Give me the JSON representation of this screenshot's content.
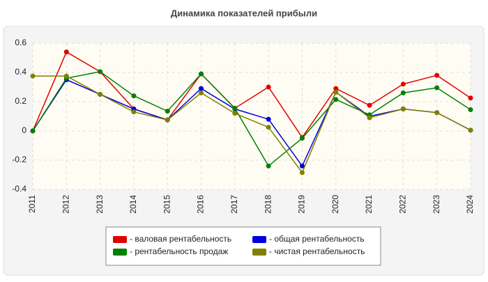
{
  "chart_data": {
    "type": "line",
    "title": "Динамика показателей прибыли",
    "categories": [
      "2011",
      "2012",
      "2013",
      "2014",
      "2015",
      "2016",
      "2017",
      "2018",
      "2019",
      "2020",
      "2021",
      "2022",
      "2023",
      "2024"
    ],
    "series": [
      {
        "name": "- валовая рентабельность",
        "color": "#e00000",
        "values": [
          0,
          0.54,
          0.405,
          0.15,
          0.075,
          0.39,
          0.155,
          0.3,
          -0.045,
          0.29,
          0.175,
          0.32,
          0.38,
          0.225
        ]
      },
      {
        "name": "- общая рентабельность",
        "color": "#0000e0",
        "values": [
          0,
          0.35,
          0.25,
          0.15,
          0.075,
          0.29,
          0.15,
          0.08,
          -0.24,
          0.265,
          0.1,
          0.15,
          0.125,
          0.005
        ]
      },
      {
        "name": "- рентабельность продаж",
        "color": "#008000",
        "values": [
          0,
          0.36,
          0.405,
          0.24,
          0.135,
          0.39,
          0.155,
          -0.24,
          -0.05,
          0.215,
          0.11,
          0.26,
          0.295,
          0.145
        ]
      },
      {
        "name": "- чистая рентабельность",
        "color": "#808000",
        "values": [
          0.375,
          0.375,
          0.25,
          0.13,
          0.075,
          0.26,
          0.12,
          0.025,
          -0.285,
          0.265,
          0.09,
          0.15,
          0.125,
          0.005
        ]
      }
    ],
    "ylim": [
      -0.4,
      0.6
    ],
    "yticks": [
      -0.4,
      -0.2,
      0,
      0.2,
      0.4,
      0.6
    ],
    "grid": true
  }
}
